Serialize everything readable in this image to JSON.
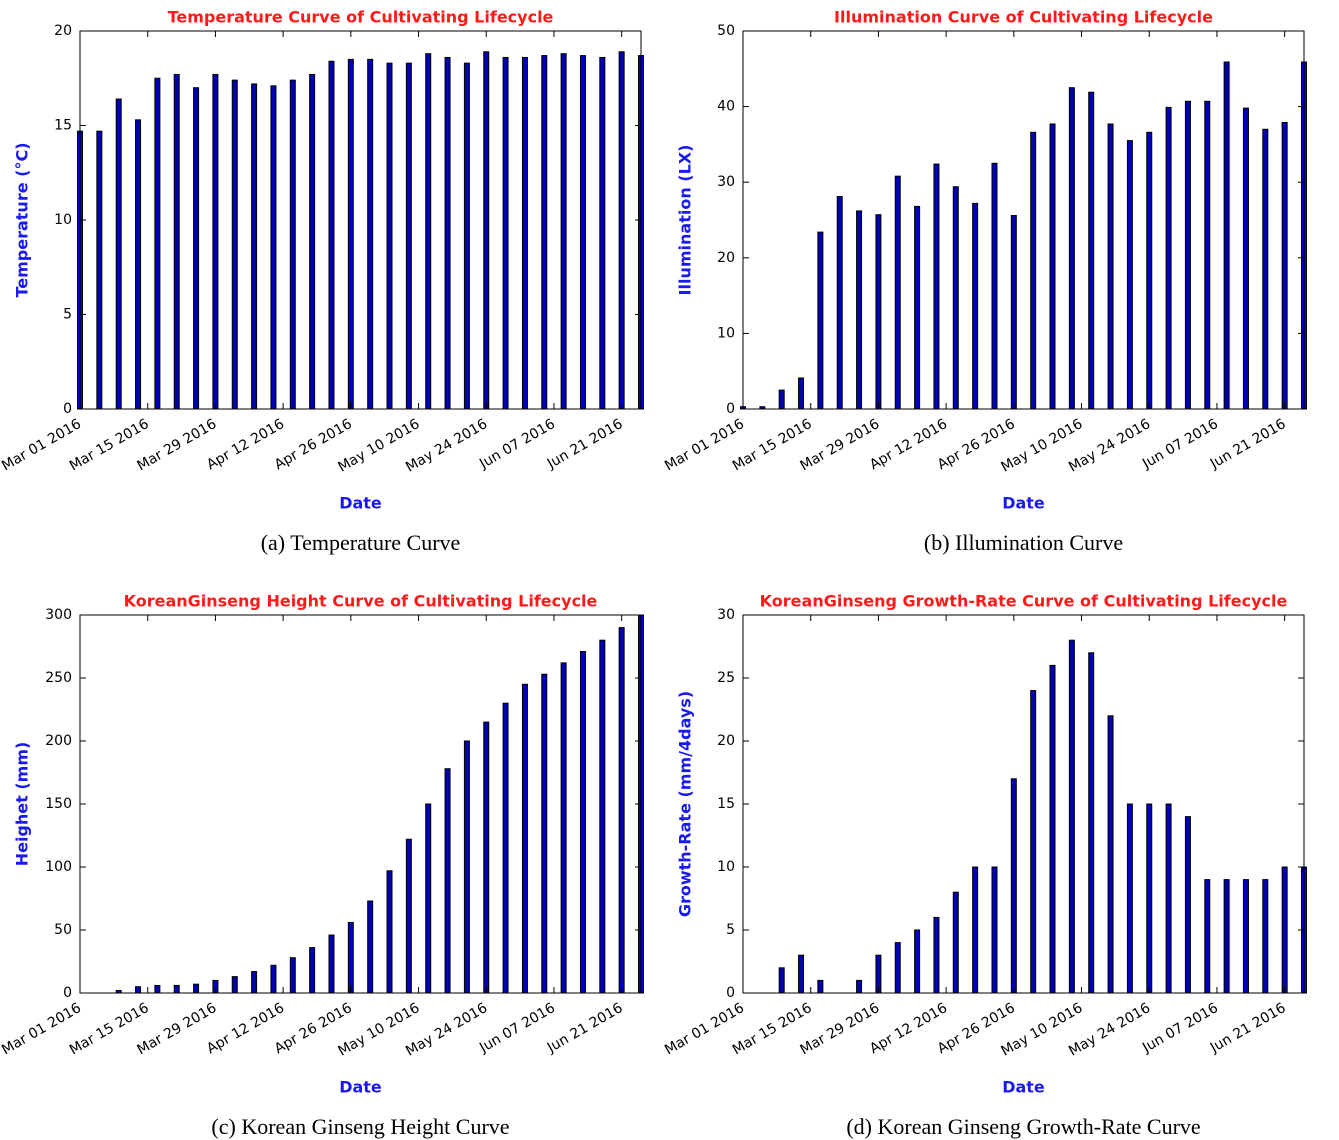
{
  "chart_data": [
    {
      "type": "bar",
      "title": "Temperature Curve of Cultivating Lifecycle",
      "xlabel": "Date",
      "ylabel": "Temperature (°C)",
      "caption": "(a) Temperature Curve",
      "color": "#0000b4",
      "x": [
        "2016-03-01",
        "2016-03-05",
        "2016-03-09",
        "2016-03-13",
        "2016-03-17",
        "2016-03-21",
        "2016-03-25",
        "2016-03-29",
        "2016-04-02",
        "2016-04-06",
        "2016-04-10",
        "2016-04-14",
        "2016-04-18",
        "2016-04-22",
        "2016-04-26",
        "2016-04-30",
        "2016-05-04",
        "2016-05-08",
        "2016-05-12",
        "2016-05-16",
        "2016-05-20",
        "2016-05-24",
        "2016-05-28",
        "2016-06-01",
        "2016-06-05",
        "2016-06-09",
        "2016-06-13",
        "2016-06-17",
        "2016-06-21",
        "2016-06-25"
      ],
      "values": [
        14.7,
        14.7,
        16.4,
        15.3,
        17.5,
        17.7,
        17.0,
        17.7,
        17.4,
        17.2,
        17.1,
        17.4,
        17.7,
        18.4,
        18.5,
        18.5,
        18.3,
        18.3,
        18.8,
        18.6,
        18.3,
        18.9,
        18.6,
        18.6,
        18.7,
        18.8,
        18.7,
        18.6,
        18.9,
        18.7
      ],
      "xlim": [
        "2016-03-01",
        "2016-06-25"
      ],
      "xticks": [
        {
          "value": "2016-03-01",
          "label": "Mar 01 2016"
        },
        {
          "value": "2016-03-15",
          "label": "Mar 15 2016"
        },
        {
          "value": "2016-03-29",
          "label": "Mar 29 2016"
        },
        {
          "value": "2016-04-12",
          "label": "Apr 12 2016"
        },
        {
          "value": "2016-04-26",
          "label": "Apr 26 2016"
        },
        {
          "value": "2016-05-10",
          "label": "May 10 2016"
        },
        {
          "value": "2016-05-24",
          "label": "May 24 2016"
        },
        {
          "value": "2016-06-07",
          "label": "Jun 07 2016"
        },
        {
          "value": "2016-06-21",
          "label": "Jun 21 2016"
        }
      ],
      "ylim": [
        0,
        20
      ],
      "yticks": [
        0,
        5,
        10,
        15,
        20
      ]
    },
    {
      "type": "bar",
      "title": "Illumination Curve of Cultivating Lifecycle",
      "xlabel": "Date",
      "ylabel": "Illumination (LX)",
      "caption": "(b) Illumination Curve",
      "color": "#0000b4",
      "x": [
        "2016-03-01",
        "2016-03-05",
        "2016-03-09",
        "2016-03-13",
        "2016-03-17",
        "2016-03-21",
        "2016-03-25",
        "2016-03-29",
        "2016-04-02",
        "2016-04-06",
        "2016-04-10",
        "2016-04-14",
        "2016-04-18",
        "2016-04-22",
        "2016-04-26",
        "2016-04-30",
        "2016-05-04",
        "2016-05-08",
        "2016-05-12",
        "2016-05-16",
        "2016-05-20",
        "2016-05-24",
        "2016-05-28",
        "2016-06-01",
        "2016-06-05",
        "2016-06-09",
        "2016-06-13",
        "2016-06-17",
        "2016-06-21",
        "2016-06-25"
      ],
      "values": [
        0.3,
        0.3,
        2.5,
        4.1,
        23.4,
        28.1,
        26.2,
        25.7,
        30.8,
        26.8,
        32.4,
        29.4,
        27.2,
        32.5,
        25.6,
        36.6,
        37.7,
        42.5,
        41.9,
        37.7,
        35.5,
        36.6,
        39.9,
        40.7,
        40.7,
        45.9,
        39.8,
        37.0,
        37.9,
        45.9
      ],
      "xlim": [
        "2016-03-01",
        "2016-06-25"
      ],
      "xticks": [
        {
          "value": "2016-03-01",
          "label": "Mar 01 2016"
        },
        {
          "value": "2016-03-15",
          "label": "Mar 15 2016"
        },
        {
          "value": "2016-03-29",
          "label": "Mar 29 2016"
        },
        {
          "value": "2016-04-12",
          "label": "Apr 12 2016"
        },
        {
          "value": "2016-04-26",
          "label": "Apr 26 2016"
        },
        {
          "value": "2016-05-10",
          "label": "May 10 2016"
        },
        {
          "value": "2016-05-24",
          "label": "May 24 2016"
        },
        {
          "value": "2016-06-07",
          "label": "Jun 07 2016"
        },
        {
          "value": "2016-06-21",
          "label": "Jun 21 2016"
        }
      ],
      "ylim": [
        0,
        50
      ],
      "yticks": [
        0,
        10,
        20,
        30,
        40,
        50
      ]
    },
    {
      "type": "bar",
      "title": "KoreanGinseng Height Curve of Cultivating Lifecycle",
      "xlabel": "Date",
      "ylabel": "Heighet (mm)",
      "caption": "(c) Korean Ginseng Height Curve",
      "color": "#0000b4",
      "x": [
        "2016-03-01",
        "2016-03-05",
        "2016-03-09",
        "2016-03-13",
        "2016-03-17",
        "2016-03-21",
        "2016-03-25",
        "2016-03-29",
        "2016-04-02",
        "2016-04-06",
        "2016-04-10",
        "2016-04-14",
        "2016-04-18",
        "2016-04-22",
        "2016-04-26",
        "2016-04-30",
        "2016-05-04",
        "2016-05-08",
        "2016-05-12",
        "2016-05-16",
        "2016-05-20",
        "2016-05-24",
        "2016-05-28",
        "2016-06-01",
        "2016-06-05",
        "2016-06-09",
        "2016-06-13",
        "2016-06-17",
        "2016-06-21",
        "2016-06-25"
      ],
      "values": [
        0,
        0,
        2,
        5,
        6,
        6,
        7,
        10,
        13,
        17,
        22,
        28,
        36,
        46,
        56,
        73,
        97,
        122,
        150,
        178,
        200,
        215,
        230,
        245,
        253,
        262,
        271,
        280,
        290,
        300
      ],
      "xlim": [
        "2016-03-01",
        "2016-06-25"
      ],
      "xticks": [
        {
          "value": "2016-03-01",
          "label": "Mar 01 2016"
        },
        {
          "value": "2016-03-15",
          "label": "Mar 15 2016"
        },
        {
          "value": "2016-03-29",
          "label": "Mar 29 2016"
        },
        {
          "value": "2016-04-12",
          "label": "Apr 12 2016"
        },
        {
          "value": "2016-04-26",
          "label": "Apr 26 2016"
        },
        {
          "value": "2016-05-10",
          "label": "May 10 2016"
        },
        {
          "value": "2016-05-24",
          "label": "May 24 2016"
        },
        {
          "value": "2016-06-07",
          "label": "Jun 07 2016"
        },
        {
          "value": "2016-06-21",
          "label": "Jun 21 2016"
        }
      ],
      "ylim": [
        0,
        300
      ],
      "yticks": [
        0,
        50,
        100,
        150,
        200,
        250,
        300
      ]
    },
    {
      "type": "bar",
      "title": "KoreanGinseng Growth-Rate Curve of Cultivating Lifecycle",
      "xlabel": "Date",
      "ylabel": "Growth-Rate (mm/4days)",
      "caption": "(d) Korean Ginseng Growth-Rate Curve",
      "color": "#0000b4",
      "x": [
        "2016-03-01",
        "2016-03-05",
        "2016-03-09",
        "2016-03-13",
        "2016-03-17",
        "2016-03-21",
        "2016-03-25",
        "2016-03-29",
        "2016-04-02",
        "2016-04-06",
        "2016-04-10",
        "2016-04-14",
        "2016-04-18",
        "2016-04-22",
        "2016-04-26",
        "2016-04-30",
        "2016-05-04",
        "2016-05-08",
        "2016-05-12",
        "2016-05-16",
        "2016-05-20",
        "2016-05-24",
        "2016-05-28",
        "2016-06-01",
        "2016-06-05",
        "2016-06-09",
        "2016-06-13",
        "2016-06-17",
        "2016-06-21",
        "2016-06-25"
      ],
      "values": [
        0,
        0,
        2,
        3,
        1,
        0,
        1,
        3,
        4,
        5,
        6,
        8,
        10,
        10,
        17,
        24,
        26,
        28,
        27,
        22,
        15,
        15,
        15,
        14,
        9,
        9,
        9,
        9,
        10,
        10
      ],
      "xlim": [
        "2016-03-01",
        "2016-06-25"
      ],
      "xticks": [
        {
          "value": "2016-03-01",
          "label": "Mar 01 2016"
        },
        {
          "value": "2016-03-15",
          "label": "Mar 15 2016"
        },
        {
          "value": "2016-03-29",
          "label": "Mar 29 2016"
        },
        {
          "value": "2016-04-12",
          "label": "Apr 12 2016"
        },
        {
          "value": "2016-04-26",
          "label": "Apr 26 2016"
        },
        {
          "value": "2016-05-10",
          "label": "May 10 2016"
        },
        {
          "value": "2016-05-24",
          "label": "May 24 2016"
        },
        {
          "value": "2016-06-07",
          "label": "Jun 07 2016"
        },
        {
          "value": "2016-06-21",
          "label": "Jun 21 2016"
        }
      ],
      "ylim": [
        0,
        30
      ],
      "yticks": [
        0,
        5,
        10,
        15,
        20,
        25,
        30
      ]
    }
  ]
}
